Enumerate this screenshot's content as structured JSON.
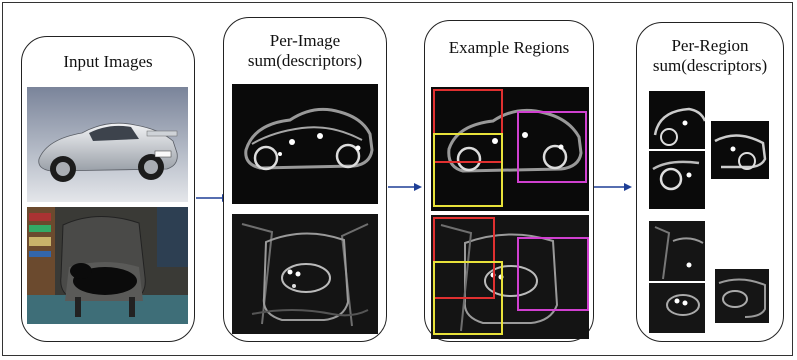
{
  "panels": {
    "input": {
      "title": "Input Images"
    },
    "per_image": {
      "title_line1": "Per-Image",
      "title_line2": "sum(descriptors)"
    },
    "regions": {
      "title": "Example Regions"
    },
    "per_region": {
      "title_line1": "Per-Region",
      "title_line2": "sum(descriptors)"
    }
  },
  "image_subjects": [
    "car-photo",
    "dog-on-chair-photo"
  ],
  "colors": {
    "arrow": "#1f3f96",
    "region_red": "#e03030",
    "region_yellow": "#e8e23a",
    "region_magenta": "#d040d0",
    "panel_border": "#222222",
    "map_background": "#0e0e0e"
  }
}
